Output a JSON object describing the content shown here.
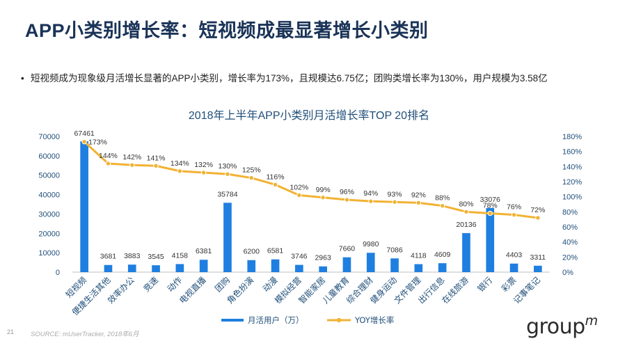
{
  "slide": {
    "title": "APP小类别增长率：短视频成最显著增长小类别",
    "bullet_marker": "•",
    "bullet_text": "短视频成为现象级月活增长显著的APP小类别，增长率为173%，且规模达6.75亿；团购类增长率为130%，用户规模为3.58亿",
    "page_number": "21",
    "source": "SOURCE: mUserTracker, 2018年6月",
    "logo_text": "group",
    "logo_sup": "m"
  },
  "chart_data": {
    "type": "bar",
    "title": "2018年上半年APP小类别月活增长率TOP 20排名",
    "categories": [
      "短视频",
      "便捷生活其他",
      "效率办公",
      "竞速",
      "动作",
      "电视直播",
      "团购",
      "角色扮演",
      "动漫",
      "模拟经营",
      "智能家居",
      "儿童教育",
      "综合理财",
      "健身运动",
      "文件管理",
      "出行信息",
      "在线旅游",
      "银行",
      "彩票",
      "记事笔记"
    ],
    "series": [
      {
        "name": "月活用户（万）",
        "kind": "bar",
        "axis": "left",
        "color": "#1f7fe0",
        "values": [
          67461,
          3681,
          3883,
          3545,
          4158,
          6381,
          35784,
          6200,
          6581,
          3746,
          2963,
          7660,
          9980,
          7086,
          4118,
          4609,
          20136,
          33076,
          4403,
          3311
        ]
      },
      {
        "name": "YOY增长率",
        "kind": "line",
        "axis": "right",
        "color": "#f2b233",
        "values": [
          173,
          144,
          142,
          141,
          134,
          132,
          130,
          125,
          116,
          102,
          99,
          96,
          94,
          93,
          92,
          88,
          80,
          78,
          76,
          72
        ]
      }
    ],
    "y_left": {
      "min": 0,
      "max": 70000,
      "ticks": [
        "0",
        "10000",
        "20000",
        "30000",
        "40000",
        "50000",
        "60000",
        "70000"
      ]
    },
    "y_right": {
      "min": 0,
      "max": 180,
      "ticks": [
        "0%",
        "20%",
        "40%",
        "60%",
        "80%",
        "100%",
        "120%",
        "140%",
        "160%",
        "180%"
      ]
    },
    "grid": false,
    "legend_position": "bottom"
  }
}
